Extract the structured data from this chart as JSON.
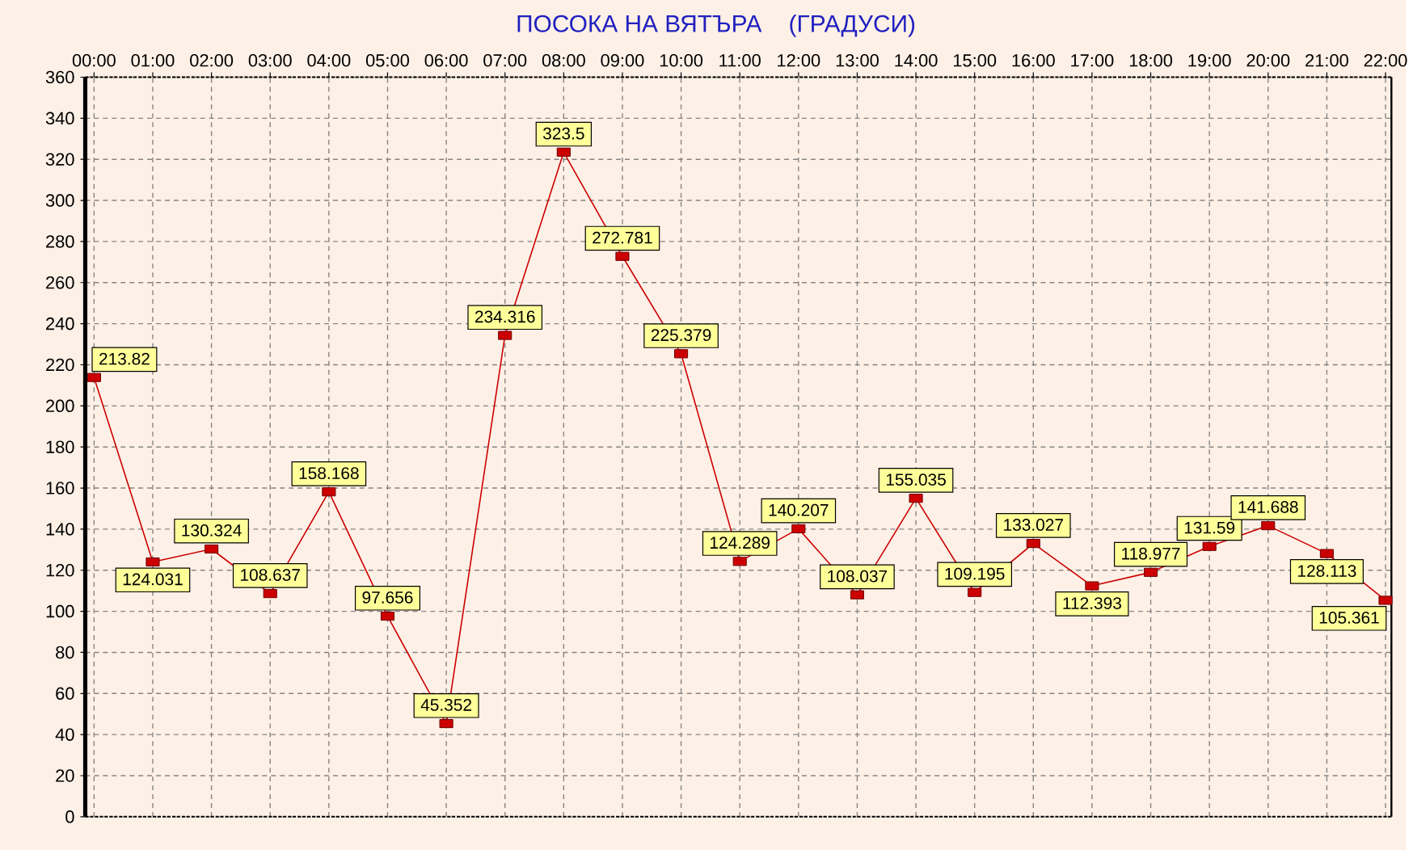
{
  "chart_data": {
    "type": "line",
    "title": "ПОСОКА НА ВЯТЪРА    (ГРАДУСИ)",
    "x": [
      0,
      1,
      2,
      3,
      4,
      5,
      6,
      7,
      8,
      9,
      10,
      11,
      12,
      13,
      14,
      15,
      16,
      17,
      18,
      19,
      20,
      21,
      22
    ],
    "values": [
      213.82,
      124.031,
      130.324,
      108.637,
      158.168,
      97.656,
      45.352,
      234.316,
      323.5,
      272.781,
      225.379,
      124.289,
      140.207,
      108.037,
      155.035,
      109.195,
      133.027,
      112.393,
      118.977,
      131.59,
      141.688,
      128.113,
      105.361
    ],
    "color": "#cc0000",
    "marker": "square",
    "line_style": "solid",
    "grid": true,
    "data_labels": true,
    "xlim": [
      -0.15,
      22.1
    ],
    "xticks": [
      {
        "value": 0,
        "label": "00:00"
      },
      {
        "value": 1,
        "label": "01:00"
      },
      {
        "value": 2,
        "label": "02:00"
      },
      {
        "value": 3,
        "label": "03:00"
      },
      {
        "value": 4,
        "label": "04:00"
      },
      {
        "value": 5,
        "label": "05:00"
      },
      {
        "value": 6,
        "label": "06:00"
      },
      {
        "value": 7,
        "label": "07:00"
      },
      {
        "value": 8,
        "label": "08:00"
      },
      {
        "value": 9,
        "label": "09:00"
      },
      {
        "value": 10,
        "label": "10:00"
      },
      {
        "value": 11,
        "label": "11:00"
      },
      {
        "value": 12,
        "label": "12:00"
      },
      {
        "value": 13,
        "label": "13:00"
      },
      {
        "value": 14,
        "label": "14:00"
      },
      {
        "value": 15,
        "label": "15:00"
      },
      {
        "value": 16,
        "label": "16:00"
      },
      {
        "value": 17,
        "label": "17:00"
      },
      {
        "value": 18,
        "label": "18:00"
      },
      {
        "value": 19,
        "label": "19:00"
      },
      {
        "value": 20,
        "label": "20:00"
      },
      {
        "value": 21,
        "label": "21:00"
      },
      {
        "value": 22,
        "label": "22:00"
      }
    ],
    "ylim": [
      0,
      360
    ],
    "yticks": [
      0,
      20,
      40,
      60,
      80,
      100,
      120,
      140,
      160,
      180,
      200,
      220,
      240,
      260,
      280,
      300,
      320,
      340,
      360
    ]
  }
}
